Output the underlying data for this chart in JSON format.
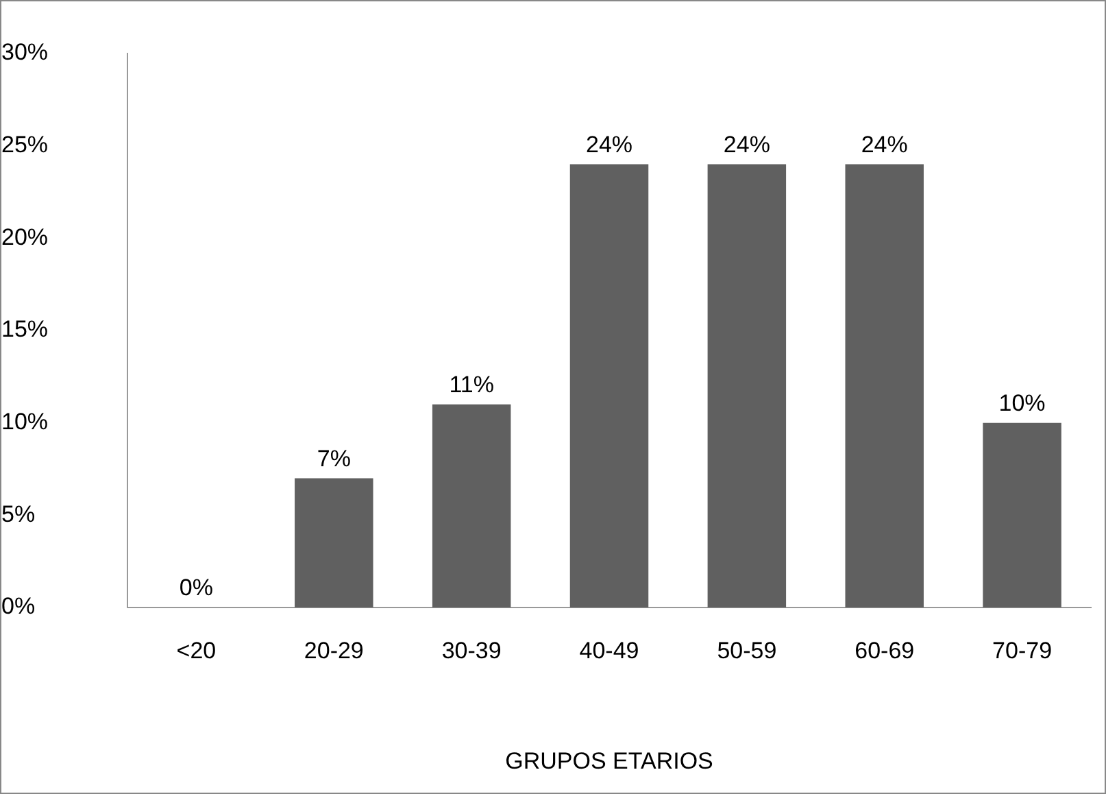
{
  "chart_data": {
    "type": "bar",
    "xlabel": "GRUPOS ETARIOS",
    "categories": [
      "<20",
      "20-29",
      "30-39",
      "40-49",
      "50-59",
      "60-69",
      "70-79"
    ],
    "values": [
      0,
      7,
      11,
      24,
      24,
      24,
      10
    ],
    "value_labels": [
      "0%",
      "7%",
      "11%",
      "24%",
      "24%",
      "24%",
      "10%"
    ],
    "color": "#606060",
    "ylim": [
      0,
      30
    ],
    "yticks": [
      {
        "value": 0,
        "label": "0%"
      },
      {
        "value": 5,
        "label": "5%"
      },
      {
        "value": 10,
        "label": "10%"
      },
      {
        "value": 15,
        "label": "15%"
      },
      {
        "value": 20,
        "label": "20%"
      },
      {
        "value": 25,
        "label": "25%"
      },
      {
        "value": 30,
        "label": "30%"
      }
    ]
  }
}
